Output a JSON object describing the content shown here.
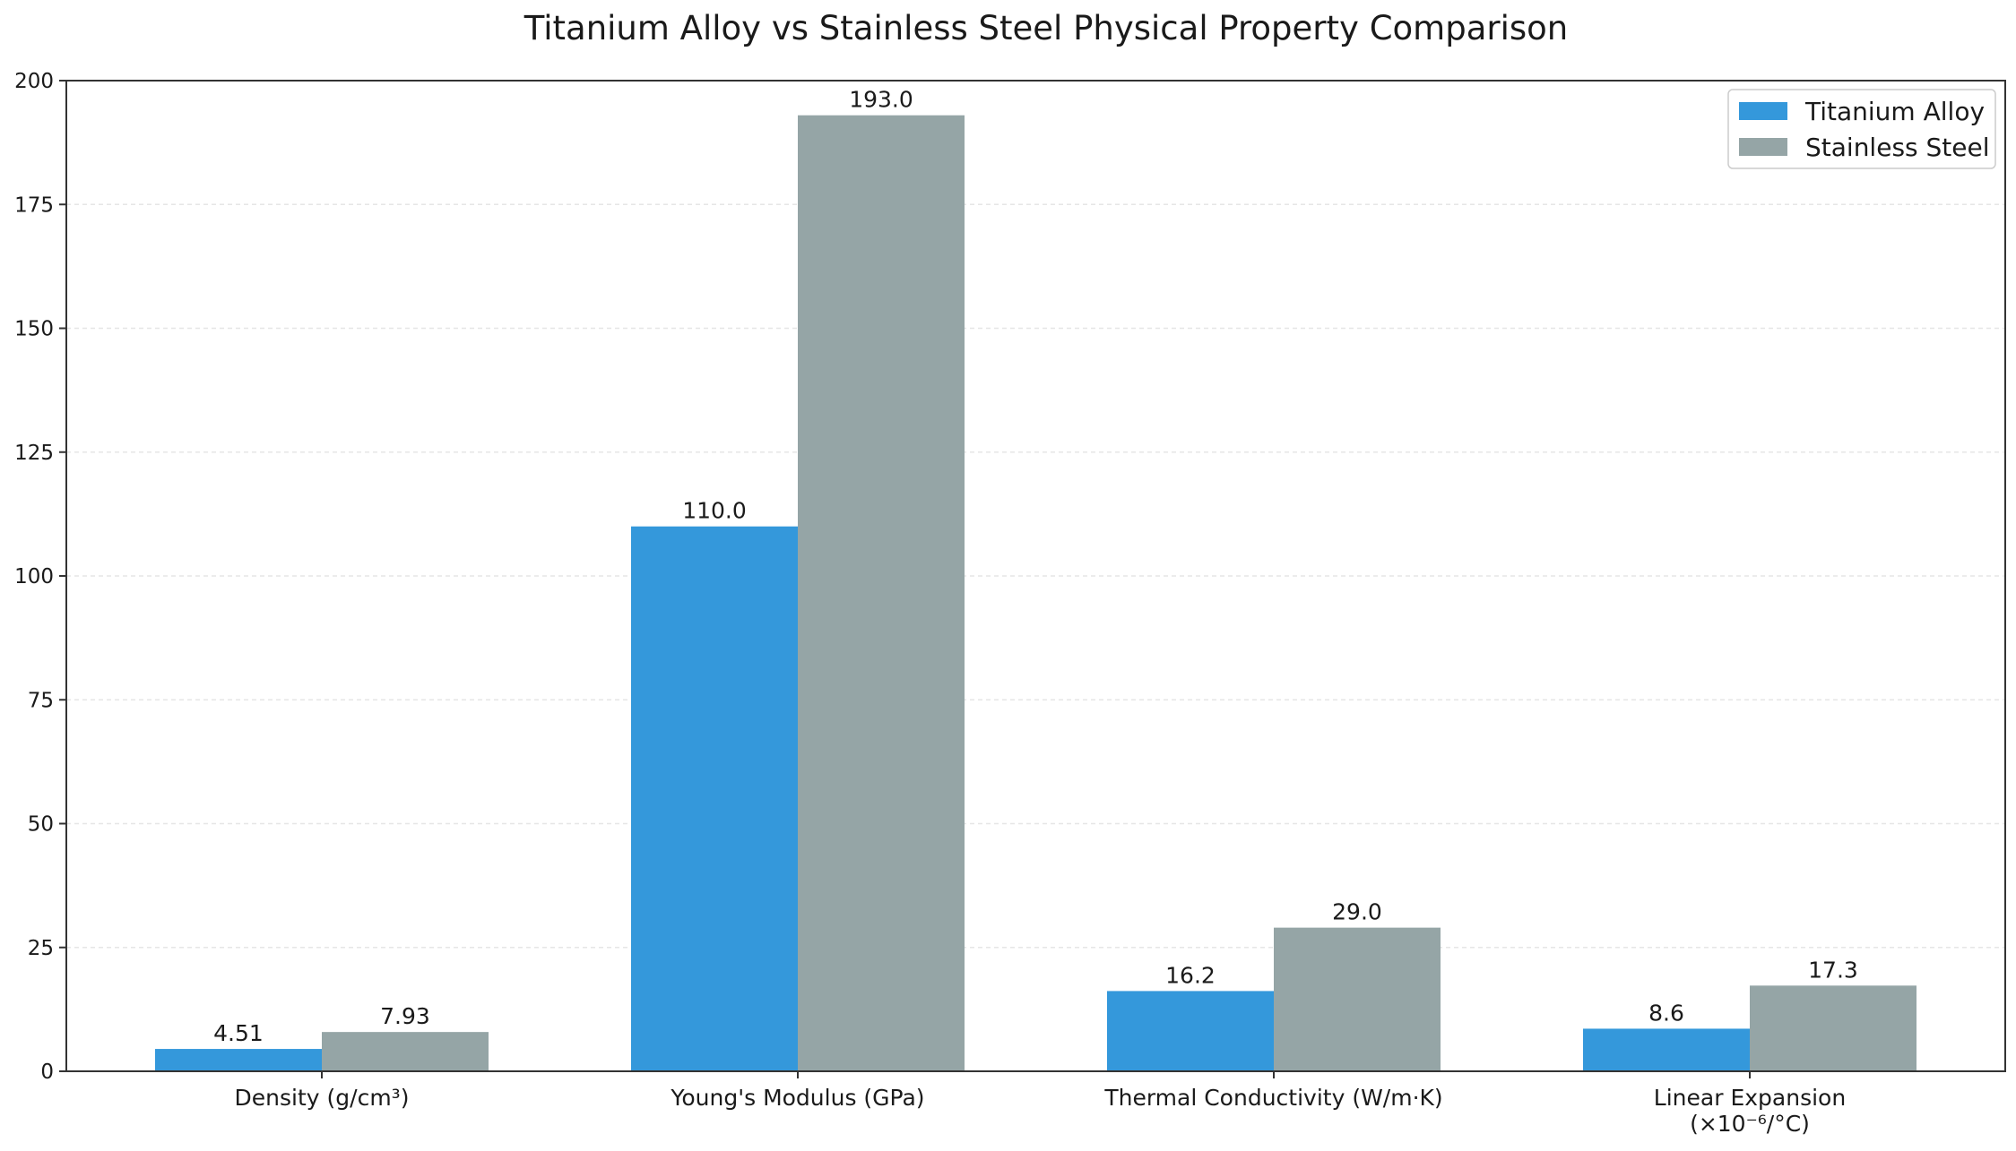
{
  "chart_data": {
    "type": "bar",
    "title": "Titanium Alloy vs Stainless Steel Physical Property Comparison",
    "xlabel": "",
    "ylabel": "",
    "categories": [
      [
        "Density (g/cm³)"
      ],
      [
        "Young's Modulus (GPa)"
      ],
      [
        "Thermal Conductivity (W/m·K)"
      ],
      [
        "Linear Expansion",
        "(×10⁻⁶/°C)"
      ]
    ],
    "series": [
      {
        "name": "Titanium Alloy",
        "color": "#3498db",
        "values": [
          4.51,
          110.0,
          16.2,
          8.6
        ],
        "labels": [
          "4.51",
          "110.0",
          "16.2",
          "8.6"
        ]
      },
      {
        "name": "Stainless Steel",
        "color": "#95a5a6",
        "values": [
          7.93,
          193.0,
          29.0,
          17.3
        ],
        "labels": [
          "7.93",
          "193.0",
          "29.0",
          "17.3"
        ]
      }
    ],
    "ylim": [
      0,
      200
    ],
    "yticks": [
      0,
      25,
      50,
      75,
      100,
      125,
      150,
      175,
      200
    ],
    "grid": true,
    "legend_position": "top-right"
  }
}
